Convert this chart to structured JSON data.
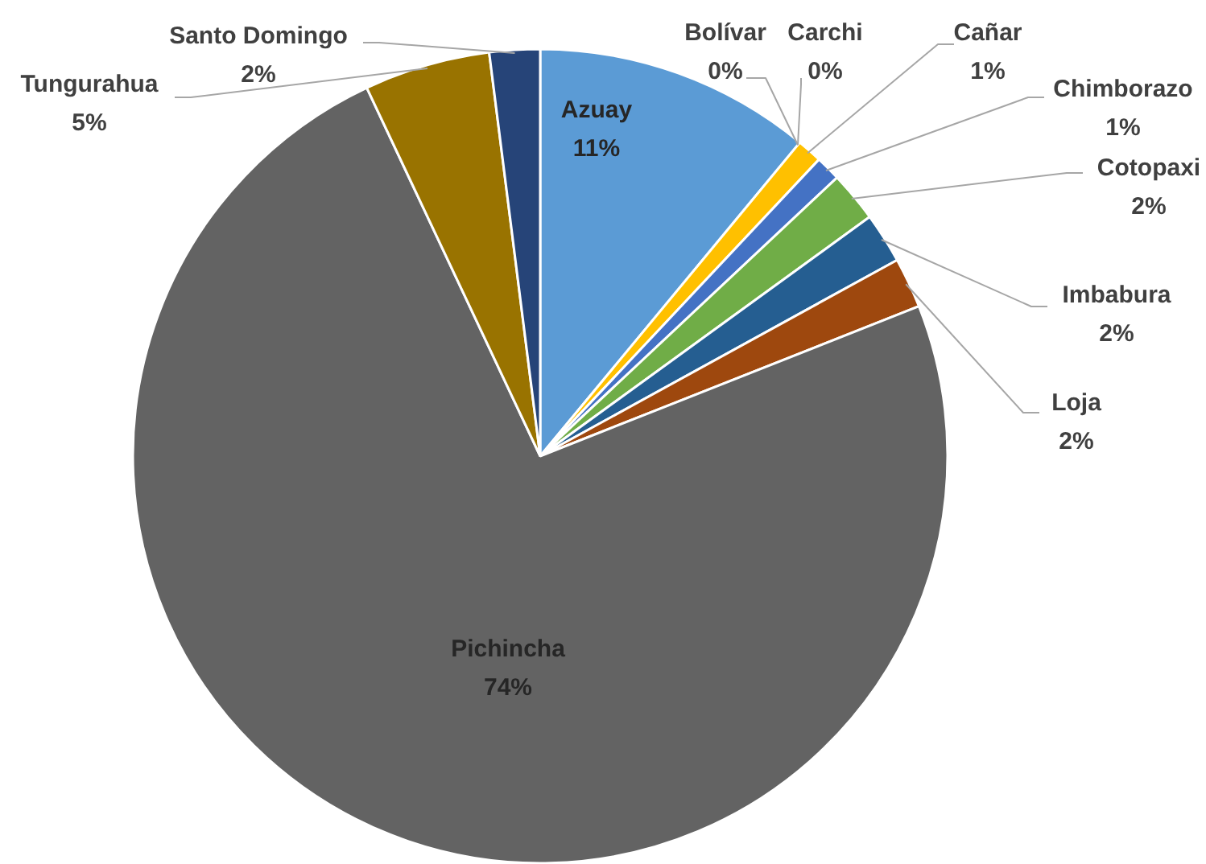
{
  "chart_data": {
    "type": "pie",
    "categories": [
      "Azuay",
      "Bolívar",
      "Carchi",
      "Cañar",
      "Chimborazo",
      "Cotopaxi",
      "Imbabura",
      "Loja",
      "Pichincha",
      "Tungurahua",
      "Santo Domingo"
    ],
    "values": [
      11,
      0,
      0,
      1,
      1,
      2,
      2,
      2,
      74,
      5,
      2
    ],
    "value_labels": [
      "11%",
      "0%",
      "0%",
      "1%",
      "1%",
      "2%",
      "2%",
      "2%",
      "74%",
      "5%",
      "2%"
    ],
    "colors": [
      "#5b9bd5",
      "#ed7d31",
      "#a5a5a5",
      "#ffc000",
      "#4472c4",
      "#70ad47",
      "#255e91",
      "#9e480e",
      "#636363",
      "#997300",
      "#264478"
    ]
  }
}
